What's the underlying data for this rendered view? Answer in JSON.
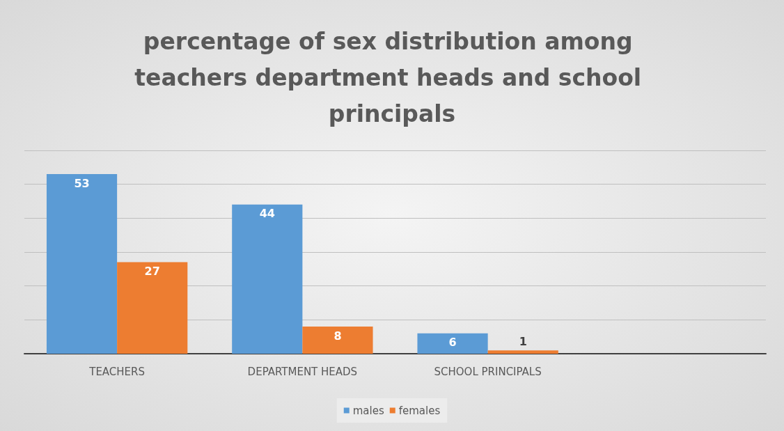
{
  "chart_data": {
    "type": "bar",
    "title": "percentage of sex distribution among teachers department heads and school principals",
    "categories": [
      "TEACHERS",
      "DEPARTMENT HEADS",
      "SCHOOL PRINCIPALS",
      null
    ],
    "series": [
      {
        "name": "males",
        "color": "#5b9bd5",
        "values": [
          53,
          44,
          6,
          null
        ]
      },
      {
        "name": "females",
        "color": "#ed7d31",
        "values": [
          27,
          8,
          1,
          null
        ]
      }
    ],
    "ylim": [
      0,
      60
    ],
    "yticks": [
      {
        "value": 0,
        "label": null
      },
      {
        "value": 10,
        "label": null
      },
      {
        "value": 20,
        "label": null
      },
      {
        "value": 30,
        "label": null
      },
      {
        "value": 40,
        "label": null
      },
      {
        "value": 50,
        "label": null
      },
      {
        "value": 60,
        "label": null
      }
    ],
    "tick_labels": "x",
    "grid": "y",
    "legend": "bottom",
    "data_labels": true
  }
}
